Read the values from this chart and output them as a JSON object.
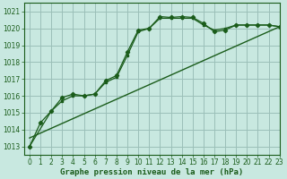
{
  "title": "Graphe pression niveau de la mer (hPa)",
  "bg_color": "#c8e8e0",
  "grid_color": "#9bbfb8",
  "line_color": "#1a5c1a",
  "xlim": [
    -0.5,
    23
  ],
  "ylim": [
    1012.5,
    1021.5
  ],
  "yticks": [
    1013,
    1014,
    1015,
    1016,
    1017,
    1018,
    1019,
    1020,
    1021
  ],
  "xticks": [
    0,
    1,
    2,
    3,
    4,
    5,
    6,
    7,
    8,
    9,
    10,
    11,
    12,
    13,
    14,
    15,
    16,
    17,
    18,
    19,
    20,
    21,
    22,
    23
  ],
  "series_main_x": [
    0,
    1,
    2,
    3,
    4,
    5,
    6,
    7,
    8,
    9,
    10,
    11,
    12,
    13,
    14,
    15,
    16,
    17,
    18,
    19,
    20,
    21,
    22,
    23
  ],
  "series_main_y": [
    1013.0,
    1014.4,
    1015.1,
    1015.9,
    1016.1,
    1016.0,
    1016.1,
    1016.9,
    1017.2,
    1018.6,
    1019.9,
    1020.0,
    1020.7,
    1020.65,
    1020.7,
    1020.65,
    1020.3,
    1019.8,
    1019.9,
    1020.2,
    1020.2,
    1020.2,
    1020.2,
    1020.1
  ],
  "series_smooth_x": [
    0,
    2,
    3,
    4,
    5,
    6,
    7,
    8,
    9,
    10,
    11,
    12,
    13,
    14,
    15,
    16,
    17,
    18,
    19,
    20,
    21,
    22,
    23
  ],
  "series_smooth_y": [
    1013.0,
    1015.1,
    1015.7,
    1016.0,
    1016.0,
    1016.1,
    1016.8,
    1017.1,
    1018.4,
    1019.8,
    1020.0,
    1020.6,
    1020.6,
    1020.6,
    1020.6,
    1020.2,
    1019.9,
    1020.0,
    1020.2,
    1020.2,
    1020.2,
    1020.2,
    1020.1
  ],
  "trend_x": [
    0,
    23
  ],
  "trend_y": [
    1013.5,
    1020.1
  ],
  "xlabel_fontsize": 6.5,
  "tick_fontsize": 5.5
}
